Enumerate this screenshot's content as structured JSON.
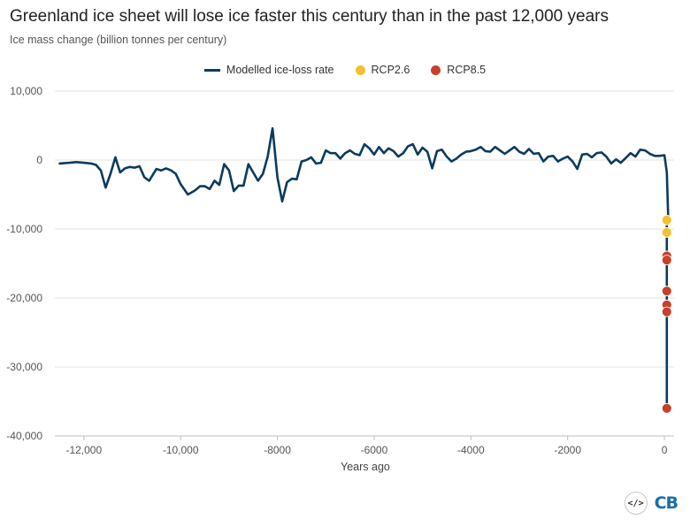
{
  "chart_data": {
    "type": "line",
    "title": "Greenland ice sheet will lose ice faster this century than in the past 12,000 years",
    "subtitle": "Ice mass change (billion tonnes per century)",
    "xlabel": "Years ago",
    "ylabel": "",
    "xlim": [
      -12600,
      200
    ],
    "ylim": [
      -40000,
      10000
    ],
    "x_ticks": [
      -12000,
      -10000,
      -8000,
      -6000,
      -4000,
      -2000,
      0
    ],
    "x_tick_labels": [
      "-12,000",
      "-10,000",
      "-8000",
      "-6000",
      "-4000",
      "-2000",
      "0"
    ],
    "y_ticks": [
      10000,
      0,
      -10000,
      -20000,
      -30000,
      -40000
    ],
    "y_tick_labels": [
      "10,000",
      "0",
      "-10,000",
      "-20,000",
      "-30,000",
      "-40,000"
    ],
    "grid": true,
    "legend_position": "top-center",
    "series": [
      {
        "name": "Modelled ice-loss rate",
        "color": "#0b3b5e",
        "kind": "line",
        "x": [
          -12500,
          -12300,
          -12150,
          -12000,
          -11850,
          -11750,
          -11650,
          -11550,
          -11450,
          -11350,
          -11250,
          -11150,
          -11050,
          -10950,
          -10850,
          -10750,
          -10650,
          -10500,
          -10400,
          -10300,
          -10200,
          -10100,
          -10000,
          -9850,
          -9700,
          -9600,
          -9500,
          -9400,
          -9300,
          -9200,
          -9100,
          -9000,
          -8900,
          -8800,
          -8700,
          -8600,
          -8500,
          -8400,
          -8300,
          -8200,
          -8100,
          -8000,
          -7900,
          -7800,
          -7700,
          -7600,
          -7500,
          -7400,
          -7300,
          -7200,
          -7100,
          -7000,
          -6900,
          -6800,
          -6700,
          -6600,
          -6500,
          -6400,
          -6300,
          -6200,
          -6100,
          -6000,
          -5900,
          -5800,
          -5700,
          -5600,
          -5500,
          -5400,
          -5300,
          -5200,
          -5100,
          -5000,
          -4900,
          -4800,
          -4700,
          -4600,
          -4500,
          -4400,
          -4300,
          -4200,
          -4100,
          -4000,
          -3900,
          -3800,
          -3700,
          -3600,
          -3500,
          -3400,
          -3300,
          -3200,
          -3100,
          -3000,
          -2900,
          -2800,
          -2700,
          -2600,
          -2500,
          -2400,
          -2300,
          -2200,
          -2100,
          -2000,
          -1900,
          -1800,
          -1700,
          -1600,
          -1500,
          -1400,
          -1300,
          -1200,
          -1100,
          -1000,
          -900,
          -800,
          -700,
          -600,
          -500,
          -400,
          -300,
          -200,
          -100,
          0,
          50,
          80
        ],
        "values": [
          -500,
          -400,
          -300,
          -400,
          -500,
          -700,
          -1500,
          -4000,
          -2000,
          400,
          -1800,
          -1200,
          -1000,
          -1100,
          -900,
          -2500,
          -3000,
          -1300,
          -1500,
          -1200,
          -1500,
          -2000,
          -3500,
          -5000,
          -4400,
          -3800,
          -3800,
          -4200,
          -3000,
          -3600,
          -600,
          -1500,
          -4500,
          -3700,
          -3700,
          -600,
          -1800,
          -3000,
          -2000,
          500,
          4600,
          -2500,
          -6000,
          -3200,
          -2700,
          -2800,
          -200,
          0,
          400,
          -500,
          -400,
          1400,
          1000,
          1000,
          200,
          1000,
          1400,
          900,
          700,
          2300,
          1700,
          800,
          1900,
          1000,
          1700,
          1300,
          500,
          1000,
          2000,
          2300,
          800,
          1800,
          1200,
          -1200,
          1300,
          1500,
          500,
          -200,
          200,
          800,
          1200,
          1300,
          1500,
          1900,
          1300,
          1200,
          1900,
          1400,
          900,
          1400,
          1900,
          1200,
          900,
          1600,
          900,
          1000,
          -200,
          500,
          600,
          -200,
          200,
          500,
          -200,
          -1300,
          800,
          900,
          400,
          1000,
          1100,
          500,
          -500,
          100,
          -400,
          300,
          1000,
          500,
          1500,
          1400,
          900,
          600,
          600,
          700,
          -1800,
          -8500
        ]
      },
      {
        "name": "RCP2.6",
        "color": "#f2c12e",
        "kind": "points",
        "x": [
          50,
          50
        ],
        "values": [
          -8700,
          -10500
        ]
      },
      {
        "name": "RCP8.5",
        "color": "#c8402a",
        "kind": "points",
        "x": [
          50,
          50,
          50,
          50,
          50,
          50
        ],
        "values": [
          -13900,
          -14500,
          -19000,
          -21000,
          -22000,
          -36000
        ]
      }
    ],
    "vertical_segment": {
      "x": 50,
      "from": -8500,
      "to": -36000
    }
  },
  "branding": {
    "code_badge": "</>",
    "logo_text": "CB"
  }
}
